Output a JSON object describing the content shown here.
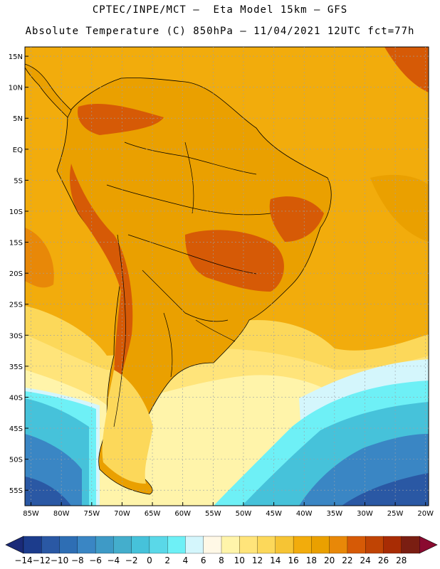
{
  "header": {
    "line1": "CPTEC/INPE/MCT –  Eta Model 15km – GFS",
    "line2": "Absolute Temperature (C) 850hPa – 11/04/2021 12UTC fct=77h"
  },
  "map": {
    "lat_labels": [
      "15N",
      "10N",
      "5N",
      "EQ",
      "5S",
      "10S",
      "15S",
      "20S",
      "25S",
      "30S",
      "35S",
      "40S",
      "45S",
      "50S",
      "55S"
    ],
    "lat_values": [
      15,
      10,
      5,
      0,
      -5,
      -10,
      -15,
      -20,
      -25,
      -30,
      -35,
      -40,
      -45,
      -50,
      -55
    ],
    "lon_labels": [
      "85W",
      "80W",
      "75W",
      "70W",
      "65W",
      "60W",
      "55W",
      "50W",
      "45W",
      "40W",
      "35W",
      "30W",
      "25W",
      "20W"
    ],
    "lon_values": [
      -85,
      -80,
      -75,
      -70,
      -65,
      -60,
      -55,
      -50,
      -45,
      -40,
      -35,
      -30,
      -25,
      -20
    ],
    "lon_range": [
      -86,
      -19.5
    ],
    "lat_range": [
      -57.5,
      16.5
    ]
  },
  "colorbar": {
    "labels": [
      "-14",
      "-12",
      "-10",
      "-8",
      "-6",
      "-4",
      "-2",
      "0",
      "2",
      "4",
      "6",
      "8",
      "10",
      "12",
      "14",
      "16",
      "18",
      "20",
      "22",
      "24",
      "26",
      "28"
    ],
    "colors": [
      "#1c3c8c",
      "#2a58a4",
      "#2e6eb4",
      "#3a86c4",
      "#3e9ac6",
      "#44aecc",
      "#46c2da",
      "#5ad8e8",
      "#6ef0f6",
      "#d4f6fc",
      "#fff8e6",
      "#fff4aa",
      "#ffe47a",
      "#fcd85a",
      "#f6c434",
      "#f2ac0c",
      "#eaa000",
      "#e88808",
      "#d65a06",
      "#c04404",
      "#a82c04",
      "#7a1e12"
    ],
    "under_color": "#1a2a78",
    "over_color": "#8a0a30"
  }
}
